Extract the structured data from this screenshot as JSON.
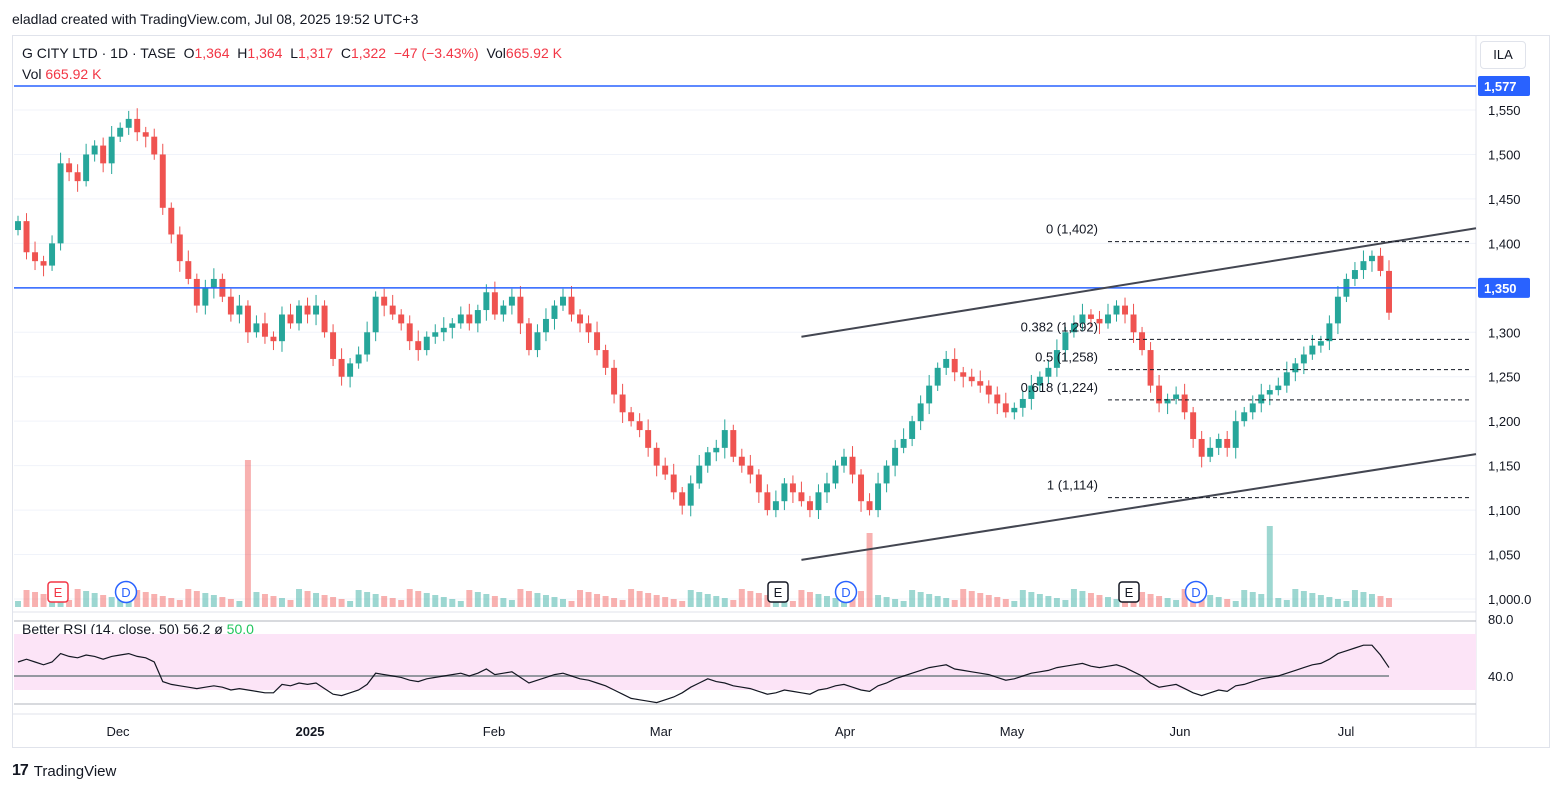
{
  "caption": "eladlad created with TradingView.com, Jul 08, 2025 19:52 UTC+3",
  "legend": {
    "symbol": "G CITY LTD · 1D · TASE",
    "o_label": "O",
    "o": "1,364",
    "h_label": "H",
    "h": "1,364",
    "l_label": "L",
    "l": "1,317",
    "c_label": "C",
    "c": "1,322",
    "change": "−47 (−3.43%)",
    "vol_label": "Vol",
    "vol": "665.92 K"
  },
  "vol_legend": {
    "label": "Vol",
    "value": "665.92 K"
  },
  "rsi_legend": {
    "label": "Better RSI (14, close, 50)",
    "value": "56.2",
    "sym": "ø",
    "mid": "50.0"
  },
  "currency": "ILA",
  "brand": "TradingView",
  "colors": {
    "up": "#26a69a",
    "down": "#ef5350",
    "level": "#2962ff",
    "channel": "#434651"
  },
  "chart_data": {
    "type": "candlestick",
    "y_ticks": [
      1550,
      1500,
      1450,
      1400,
      1350,
      1300,
      1250,
      1200,
      1150,
      1100,
      1050,
      1000
    ],
    "y_tick_labels": [
      "1,550",
      "1,500",
      "1,450",
      "1,400",
      "1,350",
      "1,300",
      "1,250",
      "1,200",
      "1,150",
      "1,100",
      "1,050",
      "1,000.0"
    ],
    "ylim": [
      985,
      1585
    ],
    "x_labels": [
      "Dec",
      "2025",
      "Feb",
      "Mar",
      "Apr",
      "May",
      "Jun",
      "Jul"
    ],
    "levels": [
      {
        "value": 1577,
        "label": "1,577"
      },
      {
        "value": 1350,
        "label": "1,350"
      }
    ],
    "fib": [
      {
        "ratio": "0",
        "value": 1402,
        "label": "0 (1,402)"
      },
      {
        "ratio": "0.382",
        "value": 1292,
        "label": "0.382 (1,292)"
      },
      {
        "ratio": "0.5",
        "value": 1258,
        "label": "0.5 (1,258)"
      },
      {
        "ratio": "0.618",
        "value": 1224,
        "label": "0.618 (1,224)"
      },
      {
        "ratio": "1",
        "value": 1114,
        "label": "1 (1,114)"
      }
    ],
    "closes": [
      1425,
      1390,
      1380,
      1375,
      1400,
      1490,
      1480,
      1470,
      1500,
      1510,
      1490,
      1520,
      1530,
      1540,
      1525,
      1520,
      1500,
      1440,
      1410,
      1380,
      1360,
      1330,
      1350,
      1360,
      1340,
      1320,
      1330,
      1300,
      1310,
      1295,
      1290,
      1320,
      1310,
      1330,
      1320,
      1330,
      1300,
      1270,
      1250,
      1265,
      1275,
      1300,
      1340,
      1330,
      1320,
      1310,
      1290,
      1280,
      1295,
      1300,
      1305,
      1310,
      1320,
      1310,
      1325,
      1345,
      1320,
      1330,
      1340,
      1310,
      1280,
      1300,
      1315,
      1330,
      1340,
      1320,
      1310,
      1300,
      1280,
      1260,
      1230,
      1210,
      1200,
      1190,
      1170,
      1150,
      1140,
      1120,
      1105,
      1130,
      1150,
      1165,
      1170,
      1190,
      1160,
      1150,
      1140,
      1120,
      1100,
      1110,
      1130,
      1120,
      1110,
      1100,
      1120,
      1130,
      1150,
      1160,
      1140,
      1110,
      1100,
      1130,
      1150,
      1170,
      1180,
      1200,
      1220,
      1240,
      1260,
      1270,
      1255,
      1250,
      1245,
      1240,
      1230,
      1220,
      1210,
      1215,
      1225,
      1240,
      1250,
      1260,
      1280,
      1300,
      1310,
      1320,
      1315,
      1310,
      1320,
      1330,
      1320,
      1300,
      1280,
      1240,
      1220,
      1225,
      1230,
      1210,
      1180,
      1160,
      1170,
      1180,
      1170,
      1200,
      1210,
      1220,
      1230,
      1235,
      1240,
      1255,
      1265,
      1275,
      1285,
      1290,
      1310,
      1340,
      1360,
      1370,
      1380,
      1386,
      1369,
      1322
    ],
    "rsi": [
      60,
      62,
      60,
      58,
      60,
      66,
      64,
      63,
      65,
      64,
      62,
      64,
      65,
      66,
      64,
      63,
      60,
      46,
      44,
      43,
      42,
      41,
      42,
      43,
      42,
      40,
      41,
      40,
      39,
      38,
      38,
      44,
      43,
      45,
      44,
      45,
      41,
      37,
      36,
      38,
      40,
      44,
      52,
      51,
      50,
      49,
      47,
      46,
      48,
      49,
      50,
      51,
      52,
      50,
      52,
      55,
      51,
      52,
      53,
      49,
      45,
      47,
      49,
      51,
      52,
      50,
      48,
      47,
      45,
      43,
      40,
      37,
      34,
      33,
      32,
      31,
      33,
      35,
      38,
      42,
      45,
      48,
      46,
      45,
      43,
      42,
      41,
      39,
      37,
      38,
      40,
      39,
      38,
      37,
      40,
      41,
      43,
      44,
      42,
      40,
      39,
      43,
      45,
      48,
      50,
      52,
      54,
      56,
      57,
      58,
      55,
      54,
      53,
      52,
      51,
      49,
      47,
      48,
      50,
      52,
      53,
      54,
      56,
      57,
      58,
      59,
      57,
      56,
      57,
      58,
      56,
      53,
      50,
      45,
      42,
      43,
      44,
      41,
      38,
      36,
      38,
      40,
      39,
      43,
      44,
      46,
      48,
      49,
      50,
      52,
      54,
      56,
      58,
      59,
      62,
      66,
      68,
      70,
      72,
      72,
      65,
      56
    ],
    "rsi_levels": {
      "top": 80.0,
      "bottom": 40.0,
      "mid": 50.0
    }
  },
  "markers": [
    {
      "kind": "E",
      "label": "E",
      "color": "#f23645"
    },
    {
      "kind": "D",
      "label": "D",
      "color": "#2962ff"
    },
    {
      "kind": "E",
      "label": "E",
      "color": "#131722"
    },
    {
      "kind": "D",
      "label": "D",
      "color": "#2962ff"
    },
    {
      "kind": "E",
      "label": "E",
      "color": "#131722"
    },
    {
      "kind": "D",
      "label": "D",
      "color": "#2962ff"
    }
  ]
}
